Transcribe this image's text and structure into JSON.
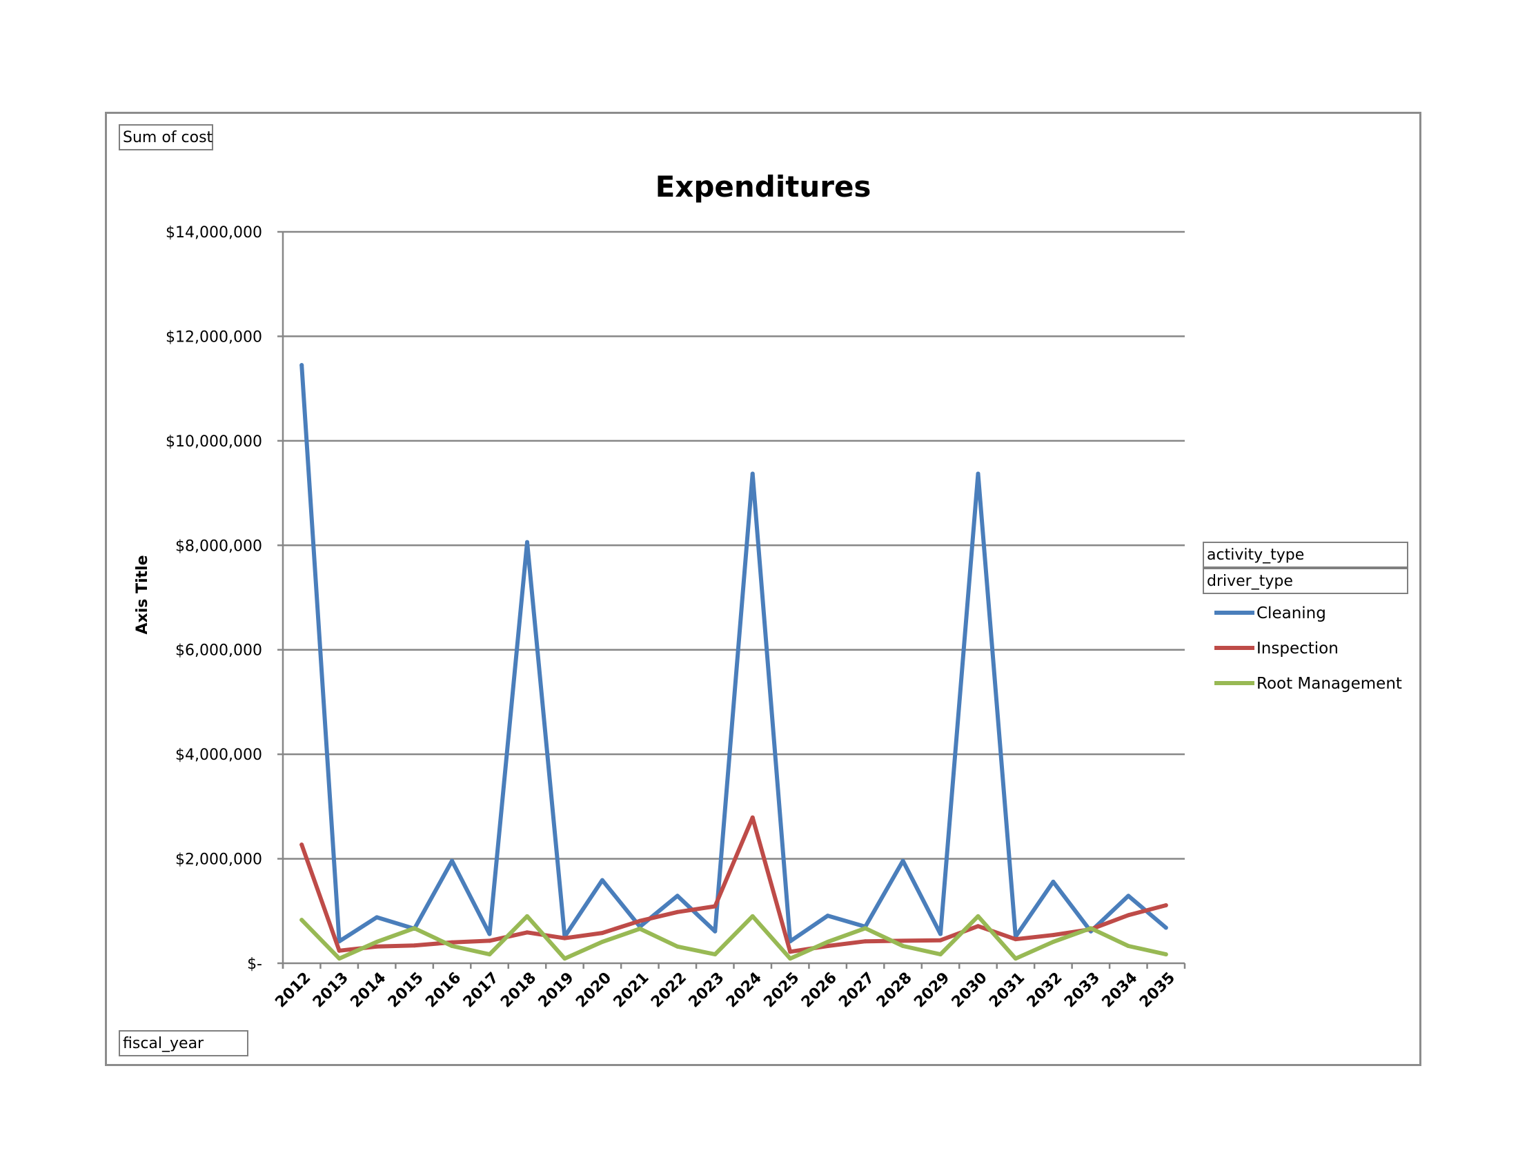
{
  "field_buttons": {
    "values": "Sum of cost",
    "axis": "fiscal_year",
    "legend_field_1": "activity_type",
    "legend_field_2": "driver_type"
  },
  "colors": {
    "Cleaning": "#4a7ebb",
    "Inspection": "#be4b48",
    "Root Management": "#98b954",
    "gridline": "#868686"
  },
  "chart_data": {
    "type": "line",
    "title": "Expenditures",
    "xlabel": "",
    "ylabel": "Axis Title",
    "ylim": [
      0,
      14000000
    ],
    "yticks": [
      {
        "value": 0,
        "label": "$-"
      },
      {
        "value": 2000000,
        "label": "$2,000,000"
      },
      {
        "value": 4000000,
        "label": "$4,000,000"
      },
      {
        "value": 6000000,
        "label": "$6,000,000"
      },
      {
        "value": 8000000,
        "label": "$8,000,000"
      },
      {
        "value": 10000000,
        "label": "$10,000,000"
      },
      {
        "value": 12000000,
        "label": "$12,000,000"
      },
      {
        "value": 14000000,
        "label": "$14,000,000"
      }
    ],
    "grid": true,
    "legend_position": "right",
    "categories": [
      "2012",
      "2013",
      "2014",
      "2015",
      "2016",
      "2017",
      "2018",
      "2019",
      "2020",
      "2021",
      "2022",
      "2023",
      "2024",
      "2025",
      "2026",
      "2027",
      "2028",
      "2029",
      "2030",
      "2031",
      "2032",
      "2033",
      "2034",
      "2035"
    ],
    "series": [
      {
        "name": "Cleaning",
        "values": [
          11450000,
          420000,
          880000,
          660000,
          1960000,
          560000,
          8060000,
          510000,
          1590000,
          700000,
          1290000,
          610000,
          9370000,
          420000,
          910000,
          700000,
          1960000,
          560000,
          9370000,
          510000,
          1560000,
          610000,
          1290000,
          680000
        ]
      },
      {
        "name": "Inspection",
        "values": [
          2270000,
          240000,
          320000,
          340000,
          400000,
          430000,
          590000,
          480000,
          580000,
          810000,
          980000,
          1090000,
          2790000,
          220000,
          330000,
          420000,
          430000,
          440000,
          710000,
          460000,
          540000,
          650000,
          920000,
          1110000
        ]
      },
      {
        "name": "Root Management",
        "values": [
          830000,
          90000,
          410000,
          670000,
          330000,
          170000,
          900000,
          90000,
          410000,
          660000,
          320000,
          170000,
          900000,
          90000,
          410000,
          670000,
          330000,
          170000,
          900000,
          90000,
          410000,
          670000,
          330000,
          170000
        ]
      }
    ]
  }
}
